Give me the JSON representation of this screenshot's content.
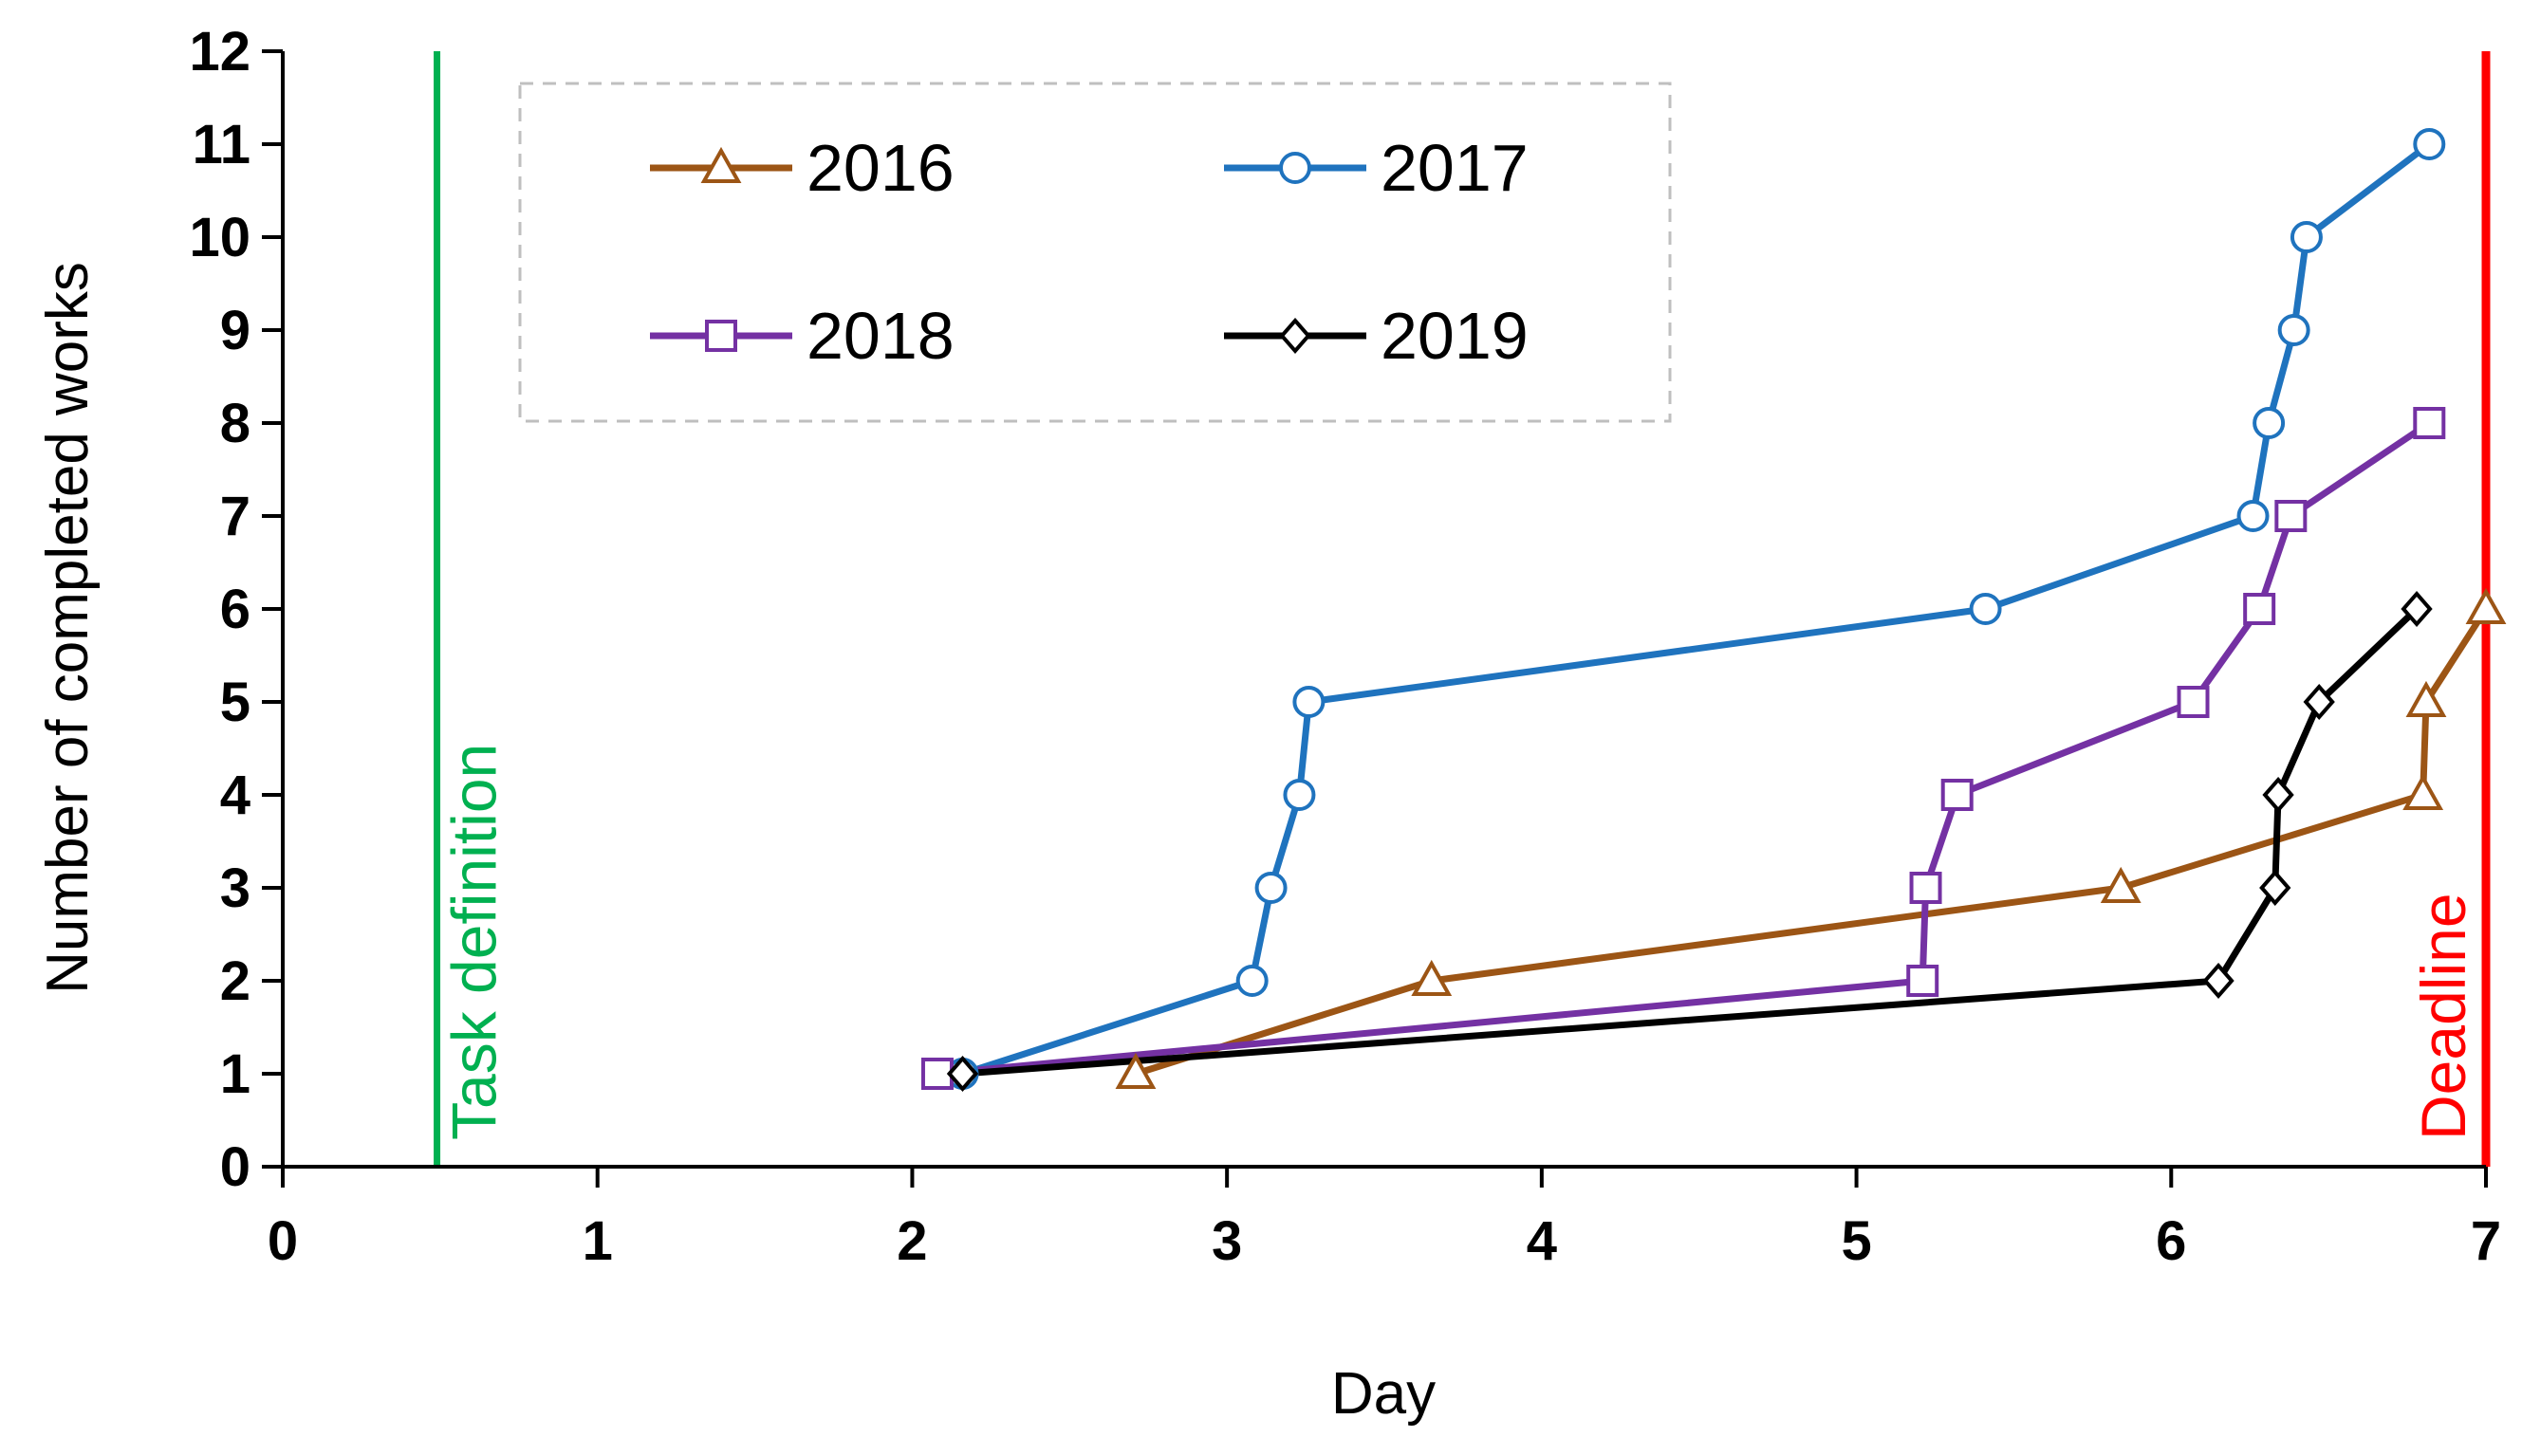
{
  "chart_data": {
    "type": "line",
    "title": "",
    "xlabel": "Day",
    "ylabel": "Number of completed works",
    "xlim": [
      0,
      7
    ],
    "ylim": [
      0,
      12
    ],
    "xticks": [
      "0",
      "1",
      "2",
      "3",
      "4",
      "5",
      "6",
      "7"
    ],
    "yticks": [
      "0",
      "1",
      "2",
      "3",
      "4",
      "5",
      "6",
      "7",
      "8",
      "9",
      "10",
      "11",
      "12"
    ],
    "grid": false,
    "legend_position": "top-left",
    "series": [
      {
        "name": "2016",
        "color": "#9C5515",
        "marker": "triangle",
        "points": [
          [
            2.71,
            1
          ],
          [
            3.65,
            2
          ],
          [
            5.84,
            3
          ],
          [
            6.8,
            4
          ],
          [
            6.81,
            5
          ],
          [
            7.0,
            6
          ]
        ]
      },
      {
        "name": "2017",
        "color": "#1F73BE",
        "marker": "circle",
        "points": [
          [
            2.16,
            1
          ],
          [
            3.08,
            2
          ],
          [
            3.14,
            3
          ],
          [
            3.23,
            4
          ],
          [
            3.26,
            5
          ],
          [
            5.41,
            6
          ],
          [
            6.26,
            7
          ],
          [
            6.31,
            8
          ],
          [
            6.39,
            9
          ],
          [
            6.43,
            10
          ],
          [
            6.82,
            11
          ]
        ]
      },
      {
        "name": "2018",
        "color": "#7431A3",
        "marker": "square",
        "points": [
          [
            2.08,
            1
          ],
          [
            5.21,
            2
          ],
          [
            5.22,
            3
          ],
          [
            5.32,
            4
          ],
          [
            6.07,
            5
          ],
          [
            6.28,
            6
          ],
          [
            6.38,
            7
          ],
          [
            6.82,
            8
          ]
        ]
      },
      {
        "name": "2019",
        "color": "#000000",
        "marker": "diamond",
        "points": [
          [
            2.16,
            1
          ],
          [
            6.15,
            2
          ],
          [
            6.33,
            3
          ],
          [
            6.34,
            4
          ],
          [
            6.47,
            5
          ],
          [
            6.78,
            6
          ]
        ]
      }
    ],
    "annotations": [
      {
        "text": "Task definition",
        "x": 0.49,
        "color": "#00B050"
      },
      {
        "text": "Deadline",
        "x": 7.0,
        "color": "#FF0000"
      }
    ]
  }
}
